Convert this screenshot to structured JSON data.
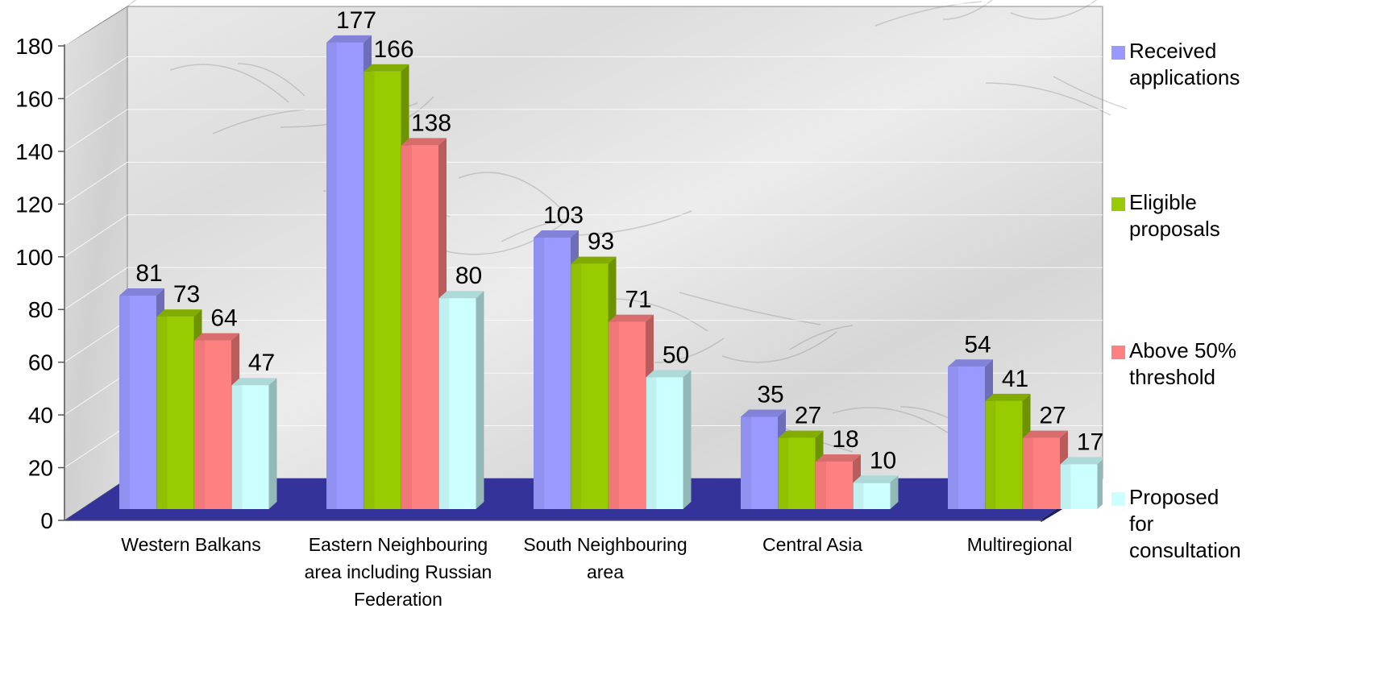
{
  "chart_data": {
    "type": "bar",
    "categories": [
      [
        "Western Balkans"
      ],
      [
        "Eastern Neighbouring",
        "area including Russian",
        "Federation"
      ],
      [
        "South Neighbouring",
        "area"
      ],
      [
        "Central Asia"
      ],
      [
        "Multiregional"
      ]
    ],
    "series": [
      {
        "name": [
          "Received",
          "applications"
        ],
        "color": "#9999ff",
        "values": [
          81,
          177,
          103,
          35,
          54
        ]
      },
      {
        "name": [
          "Eligible",
          "proposals"
        ],
        "color": "#99cc00",
        "values": [
          73,
          166,
          93,
          27,
          41
        ]
      },
      {
        "name": [
          "Above 50%",
          "threshold"
        ],
        "color": "#ff8080",
        "values": [
          64,
          138,
          71,
          18,
          27
        ]
      },
      {
        "name": [
          "Proposed",
          "for",
          "consultation"
        ],
        "color": "#ccffff",
        "values": [
          47,
          80,
          50,
          10,
          17
        ]
      }
    ],
    "y_ticks": [
      "0",
      "20",
      "40",
      "60",
      "80",
      "100",
      "120",
      "140",
      "160",
      "180"
    ],
    "ylim": [
      0,
      180
    ],
    "floor_color": "#333399",
    "background": "grey marble texture",
    "grid": true,
    "legend_position": "right"
  }
}
